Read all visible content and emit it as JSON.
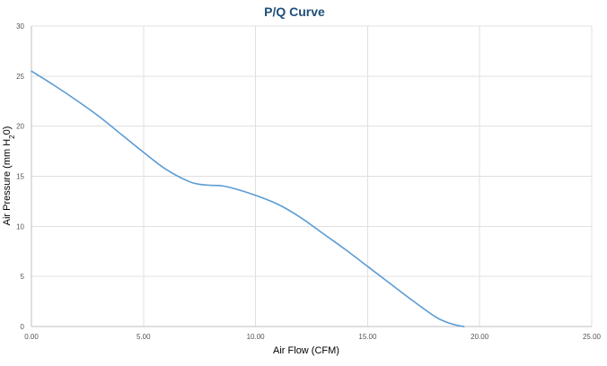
{
  "chart_data": {
    "type": "line",
    "title": "P/Q Curve",
    "xlabel": "Air Flow (CFM)",
    "ylabel_parts": {
      "prefix": "Air Pressure (mm H",
      "subscript": "2",
      "suffix": "0)"
    },
    "xlim": [
      0,
      25
    ],
    "ylim": [
      0,
      30
    ],
    "x_ticks": [
      0,
      5,
      10,
      15,
      20,
      25
    ],
    "x_tick_labels": [
      "0.00",
      "5.00",
      "10.00",
      "15.00",
      "20.00",
      "25.00"
    ],
    "y_ticks": [
      0,
      5,
      10,
      15,
      20,
      25,
      30
    ],
    "y_tick_labels": [
      "0",
      "5",
      "10",
      "15",
      "20",
      "25",
      "30"
    ],
    "grid": {
      "vertical": true,
      "horizontal": true
    },
    "series": [
      {
        "color": "#5b9bd5",
        "x": [
          0.0,
          1.0,
          2.0,
          3.0,
          4.0,
          5.0,
          6.0,
          7.0,
          7.5,
          8.0,
          8.5,
          9.0,
          10.0,
          11.0,
          12.0,
          13.0,
          14.0,
          15.0,
          16.0,
          17.0,
          18.0,
          18.5,
          19.0,
          19.3
        ],
        "y": [
          25.5,
          24.1,
          22.6,
          21.0,
          19.2,
          17.4,
          15.7,
          14.5,
          14.2,
          14.1,
          14.05,
          13.8,
          13.1,
          12.2,
          10.9,
          9.3,
          7.7,
          6.0,
          4.3,
          2.6,
          1.0,
          0.45,
          0.12,
          0.0
        ]
      }
    ]
  }
}
